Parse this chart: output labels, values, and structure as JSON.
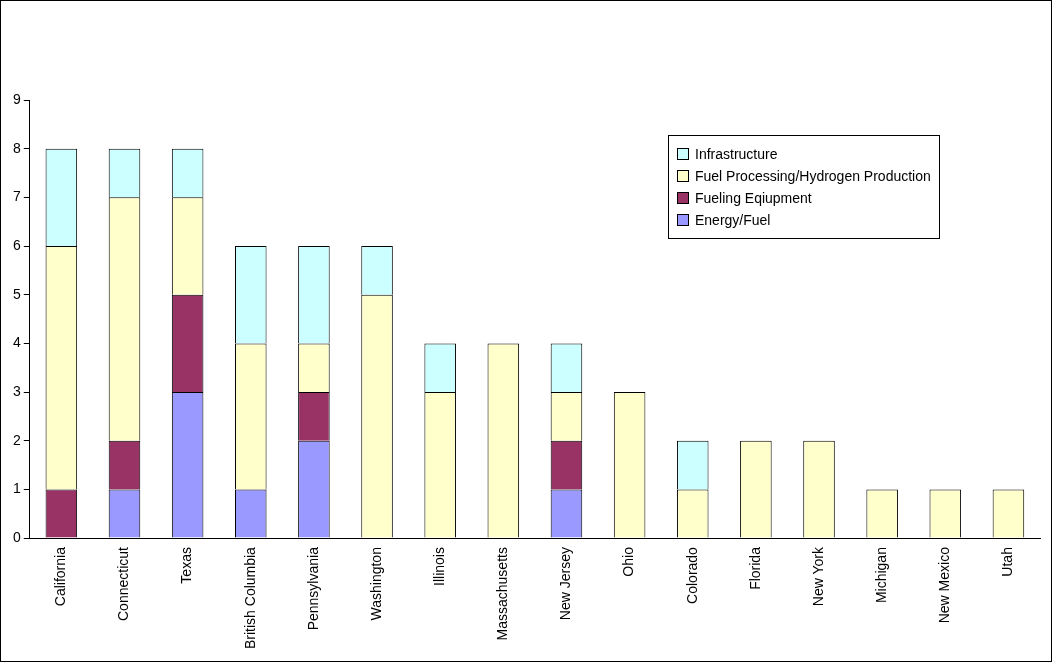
{
  "chart_data": {
    "type": "bar",
    "stacked": true,
    "legend": "top right",
    "grid": false,
    "categories": [
      "California",
      "Connecticut",
      "Texas",
      "British Columbia",
      "Pennsylvania",
      "Washington",
      "Illinois",
      "Massachusetts",
      "New Jersey",
      "Ohio",
      "Colorado",
      "Florida",
      "New York",
      "Michigan",
      "New Mexico",
      "Utah"
    ],
    "series": [
      {
        "name": "Energy/Fuel",
        "color": "#9999ff",
        "values": [
          0,
          1,
          3,
          1,
          2,
          0,
          0,
          0,
          1,
          0,
          0,
          0,
          0,
          0,
          0,
          0
        ]
      },
      {
        "name": "Fueling Eqiupment",
        "color": "#993366",
        "values": [
          1,
          1,
          2,
          0,
          1,
          0,
          0,
          0,
          1,
          0,
          0,
          0,
          0,
          0,
          0,
          0
        ]
      },
      {
        "name": "Fuel Processing/Hydrogen Production",
        "color": "#ffffcc",
        "values": [
          5,
          5,
          2,
          3,
          1,
          5,
          3,
          4,
          1,
          3,
          1,
          2,
          2,
          1,
          1,
          1
        ]
      },
      {
        "name": "Infrastructure",
        "color": "#ccffff",
        "values": [
          2,
          1,
          1,
          2,
          2,
          1,
          1,
          0,
          1,
          0,
          1,
          0,
          0,
          0,
          0,
          0
        ]
      }
    ],
    "ylim": [
      0,
      9
    ],
    "yticks": [
      0,
      1,
      2,
      3,
      4,
      5,
      6,
      7,
      8,
      9
    ]
  }
}
